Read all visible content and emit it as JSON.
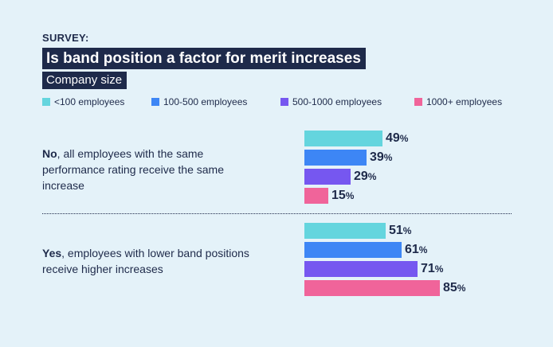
{
  "header": {
    "eyebrow": "SURVEY:",
    "title": "Is band position a factor for merit increases",
    "subtitle": "Company size"
  },
  "colors": {
    "background": "#e4f2f9",
    "navy": "#1e2a4a"
  },
  "chart_data": {
    "type": "bar",
    "orientation": "horizontal",
    "title": "Is band position a factor for merit increases",
    "subtitle": "Company size",
    "unit": "%",
    "xlim": [
      0,
      100
    ],
    "categories": [
      {
        "bold": "No",
        "rest": ", all employees with the same performance rating receive the same increase"
      },
      {
        "bold": "Yes",
        "rest": ", employees with lower band positions receive higher increases"
      }
    ],
    "series": [
      {
        "name": "<100 employees",
        "color": "#64d5de",
        "values": [
          49,
          51
        ]
      },
      {
        "name": "100-500 employees",
        "color": "#3d86f5",
        "values": [
          39,
          61
        ]
      },
      {
        "name": "500-1000 employees",
        "color": "#7657f0",
        "values": [
          29,
          71
        ]
      },
      {
        "name": "1000+ employees",
        "color": "#f0649a",
        "values": [
          15,
          85
        ]
      }
    ]
  }
}
